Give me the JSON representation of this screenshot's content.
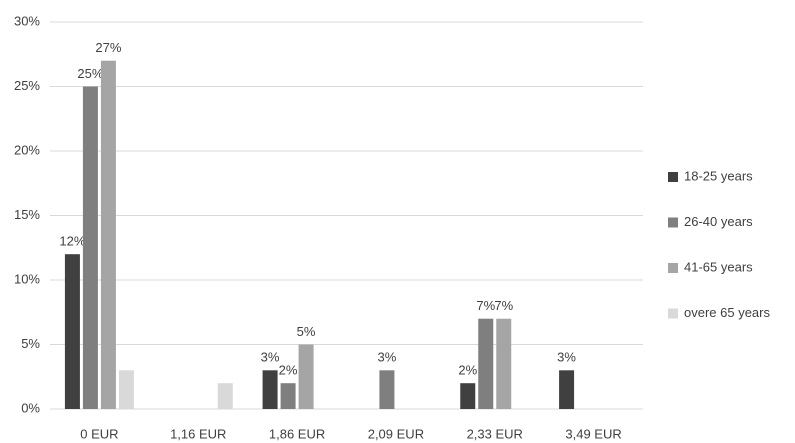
{
  "chart_data": {
    "type": "bar",
    "categories": [
      "0 EUR",
      "1,16 EUR",
      "1,86 EUR",
      "2,09 EUR",
      "2,33 EUR",
      "3,49 EUR"
    ],
    "series": [
      {
        "name": "18-25 years",
        "color": "#404040",
        "values": [
          12,
          null,
          3,
          null,
          2,
          3
        ],
        "value_labels": [
          "12%",
          null,
          "3%",
          null,
          "2%",
          "3%"
        ]
      },
      {
        "name": "26-40 years",
        "color": "#7f7f7f",
        "values": [
          25,
          null,
          2,
          3,
          7,
          null
        ],
        "value_labels": [
          "25%",
          null,
          "2%",
          "3%",
          "7%",
          null
        ]
      },
      {
        "name": "41-65 years",
        "color": "#a5a5a5",
        "values": [
          27,
          null,
          5,
          null,
          7,
          null
        ],
        "value_labels": [
          "27%",
          null,
          "5%",
          null,
          "7%",
          null
        ]
      },
      {
        "name": "overe  65 years",
        "color": "#d9d9d9",
        "values": [
          3,
          2,
          null,
          null,
          null,
          null
        ],
        "value_labels": [
          null,
          null,
          null,
          null,
          null,
          null
        ]
      }
    ],
    "ylim": [
      0,
      30
    ],
    "yticks": [
      {
        "value": 0,
        "label": "0%"
      },
      {
        "value": 5,
        "label": "5%"
      },
      {
        "value": 10,
        "label": "10%"
      },
      {
        "value": 15,
        "label": "15%"
      },
      {
        "value": 20,
        "label": "20%"
      },
      {
        "value": 25,
        "label": "25%"
      },
      {
        "value": 30,
        "label": "30%"
      }
    ],
    "grid": true,
    "legend": "right"
  }
}
